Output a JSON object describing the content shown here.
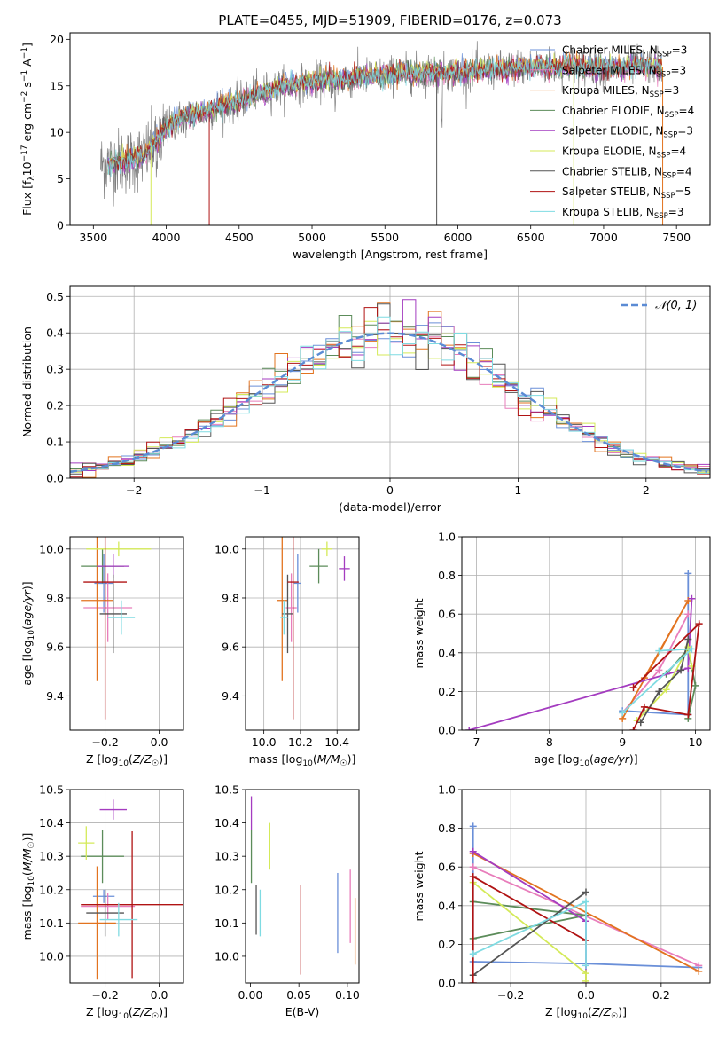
{
  "colors": {
    "Chabrier MILES": "#6a8fd8",
    "Salpeter MILES": "#e87dbb",
    "Kroupa MILES": "#e2731f",
    "Chabrier ELODIE": "#5c8c5a",
    "Salpeter ELODIE": "#a43cc0",
    "Kroupa ELODIE": "#d4ea58",
    "Chabrier STELIB": "#545454",
    "Salpeter STELIB": "#b01313",
    "Kroupa STELIB": "#7fdbe2",
    "normal": "#5b8bd4"
  },
  "chart_data": [
    {
      "id": "spectrum",
      "type": "line",
      "title": "PLATE=0455, MJD=51909, FIBERID=0176, z=0.073",
      "xlabel": "wavelength [Angstrom, rest frame]",
      "ylabel": "Flux [fλ10⁻¹⁷ erg cm⁻² s⁻¹ A⁻¹]",
      "xlim": [
        3340,
        7730
      ],
      "ylim": [
        0,
        20.7
      ],
      "xticks": [
        3500,
        4000,
        4500,
        5000,
        5500,
        6000,
        6500,
        7000,
        7500
      ],
      "yticks": [
        0,
        5,
        10,
        15,
        20
      ],
      "grid": false,
      "legend_position": "upper right",
      "legend": [
        "Chabrier MILES, NSSP=3",
        "Salpeter MILES, NSSP=3",
        "Kroupa MILES, NSSP=3",
        "Chabrier ELODIE, NSSP=4",
        "Salpeter ELODIE, NSSP=3",
        "Kroupa ELODIE, NSSP=4",
        "Chabrier STELIB, NSSP=4",
        "Salpeter STELIB, NSSP=5",
        "Kroupa STELIB, NSSP=3"
      ],
      "continuum": [
        [
          3550,
          6.5
        ],
        [
          3650,
          6.8
        ],
        [
          3750,
          7.0
        ],
        [
          3850,
          7.5
        ],
        [
          3950,
          9.5
        ],
        [
          4000,
          10.5
        ],
        [
          4100,
          11.5
        ],
        [
          4200,
          12.0
        ],
        [
          4300,
          12.3
        ],
        [
          4400,
          13.0
        ],
        [
          4500,
          13.3
        ],
        [
          4600,
          14.0
        ],
        [
          4700,
          14.5
        ],
        [
          4800,
          15.0
        ],
        [
          4900,
          15.2
        ],
        [
          5000,
          15.4
        ],
        [
          5100,
          15.6
        ],
        [
          5200,
          15.6
        ],
        [
          5300,
          15.9
        ],
        [
          5400,
          16.0
        ],
        [
          5500,
          16.1
        ],
        [
          5600,
          16.3
        ],
        [
          5700,
          16.4
        ],
        [
          5800,
          16.4
        ],
        [
          5900,
          16.4
        ],
        [
          6000,
          16.4
        ],
        [
          6100,
          16.6
        ],
        [
          6200,
          16.8
        ],
        [
          6300,
          16.8
        ],
        [
          6400,
          17.0
        ],
        [
          6500,
          17.0
        ],
        [
          6600,
          17.1
        ],
        [
          6700,
          17.1
        ],
        [
          6800,
          17.2
        ],
        [
          6900,
          17.0
        ],
        [
          7000,
          16.9
        ],
        [
          7100,
          16.9
        ],
        [
          7200,
          17.1
        ],
        [
          7300,
          17.2
        ],
        [
          7400,
          17.0
        ]
      ],
      "data_color": "#808080",
      "model_color": "#7fdbe2"
    },
    {
      "id": "residuals",
      "type": "line",
      "xlabel": "(data-model)/error",
      "ylabel": "Normed distribution",
      "xlim": [
        -2.5,
        2.5
      ],
      "ylim": [
        0,
        0.53
      ],
      "xticks": [
        -2,
        -1,
        0,
        1,
        2
      ],
      "yticks": [
        0.0,
        0.1,
        0.2,
        0.3,
        0.4,
        0.5
      ],
      "grid": true,
      "legend_position": "upper right",
      "legend_label": "𝒩(0, 1)",
      "bin_width": 0.1
    },
    {
      "id": "age-Z",
      "type": "scatter",
      "xlabel": "Z [log10(Z/Z☉)]",
      "ylabel": "age  [log10(age/yr)]",
      "xlim": [
        -0.33,
        0.09
      ],
      "ylim": [
        9.26,
        10.05
      ],
      "xticks": [
        -0.2,
        0.0
      ],
      "xticklabels": [
        "−0.2",
        "0.0"
      ],
      "yticks": [
        9.4,
        9.6,
        9.8,
        10.0
      ],
      "grid": true,
      "points": [
        {
          "model": "Chabrier MILES",
          "x": -0.205,
          "y": 9.86,
          "xerr": 0.035,
          "yerr": 0.12
        },
        {
          "model": "Salpeter MILES",
          "x": -0.19,
          "y": 9.76,
          "xerr": 0.09,
          "yerr": 0.14
        },
        {
          "model": "Kroupa MILES",
          "x": -0.23,
          "y": 9.79,
          "xerr": 0.06,
          "yerr": 0.33
        },
        {
          "model": "Chabrier ELODIE",
          "x": -0.21,
          "y": 9.93,
          "xerr": 0.08,
          "yerr": 0.07
        },
        {
          "model": "Salpeter ELODIE",
          "x": -0.17,
          "y": 9.93,
          "xerr": 0.06,
          "yerr": 0.05
        },
        {
          "model": "Kroupa ELODIE",
          "x": -0.15,
          "y": 10.0,
          "xerr": 0.12,
          "yerr": 0.03
        },
        {
          "model": "Chabrier STELIB",
          "x": -0.17,
          "y": 9.735,
          "xerr": 0.05,
          "yerr": 0.16
        },
        {
          "model": "Salpeter STELIB",
          "x": -0.2,
          "y": 9.865,
          "xerr": 0.08,
          "yerr": 0.56
        },
        {
          "model": "Kroupa STELIB",
          "x": -0.14,
          "y": 9.72,
          "xerr": 0.05,
          "yerr": 0.07
        }
      ]
    },
    {
      "id": "age-mass",
      "type": "scatter",
      "xlabel": "mass [log10(M/M☉)]",
      "xlim": [
        9.9,
        10.52
      ],
      "ylim": [
        9.26,
        10.05
      ],
      "xticks": [
        10.0,
        10.2,
        10.4
      ],
      "yticks": [
        9.4,
        9.6,
        9.8,
        10.0
      ],
      "grid": true,
      "points": [
        {
          "model": "Chabrier MILES",
          "x": 10.185,
          "y": 9.86,
          "xerr": 0.02,
          "yerr": 0.12
        },
        {
          "model": "Salpeter MILES",
          "x": 10.15,
          "y": 9.76,
          "xerr": 0.03,
          "yerr": 0.14
        },
        {
          "model": "Kroupa MILES",
          "x": 10.1,
          "y": 9.79,
          "xerr": 0.03,
          "yerr": 0.33
        },
        {
          "model": "Chabrier ELODIE",
          "x": 10.3,
          "y": 9.93,
          "xerr": 0.05,
          "yerr": 0.07
        },
        {
          "model": "Salpeter ELODIE",
          "x": 10.44,
          "y": 9.92,
          "xerr": 0.03,
          "yerr": 0.05
        },
        {
          "model": "Kroupa ELODIE",
          "x": 10.345,
          "y": 10.0,
          "xerr": 0.03,
          "yerr": 0.03
        },
        {
          "model": "Chabrier STELIB",
          "x": 10.13,
          "y": 9.735,
          "xerr": 0.03,
          "yerr": 0.16
        },
        {
          "model": "Salpeter STELIB",
          "x": 10.16,
          "y": 9.865,
          "xerr": 0.03,
          "yerr": 0.56
        },
        {
          "model": "Kroupa STELIB",
          "x": 10.11,
          "y": 9.72,
          "xerr": 0.02,
          "yerr": 0.07
        }
      ]
    },
    {
      "id": "weight-age",
      "type": "line",
      "xlabel": "age  [log10(age/yr)]",
      "ylabel": "mass weight",
      "xlim": [
        6.8,
        10.2
      ],
      "ylim": [
        0,
        1.0
      ],
      "xticks": [
        7,
        8,
        9,
        10
      ],
      "yticks": [
        0.0,
        0.2,
        0.4,
        0.6,
        0.8,
        1.0
      ],
      "grid": true,
      "series": [
        {
          "model": "Chabrier MILES",
          "x": [
            9.0,
            9.9,
            9.9
          ],
          "y": [
            0.1,
            0.08,
            0.81
          ]
        },
        {
          "model": "Salpeter MILES",
          "x": [
            9.0,
            9.5,
            9.9
          ],
          "y": [
            0.09,
            0.31,
            0.6
          ]
        },
        {
          "model": "Kroupa MILES",
          "x": [
            9.0,
            9.9,
            9.3
          ],
          "y": [
            0.06,
            0.67,
            0.27
          ]
        },
        {
          "model": "Chabrier ELODIE",
          "x": [
            9.6,
            9.9,
            10.0,
            9.9
          ],
          "y": [
            0.29,
            0.42,
            0.23,
            0.06
          ]
        },
        {
          "model": "Salpeter ELODIE",
          "x": [
            6.9,
            9.9,
            9.95
          ],
          "y": [
            0.0,
            0.32,
            0.68
          ]
        },
        {
          "model": "Kroupa ELODIE",
          "x": [
            9.2,
            9.6,
            9.9,
            9.95
          ],
          "y": [
            0.05,
            0.21,
            0.43,
            0.33
          ]
        },
        {
          "model": "Chabrier STELIB",
          "x": [
            9.25,
            9.5,
            9.8,
            9.9
          ],
          "y": [
            0.04,
            0.2,
            0.31,
            0.47
          ]
        },
        {
          "model": "Salpeter STELIB",
          "x": [
            9.15,
            9.3,
            9.9,
            10.05,
            9.15
          ],
          "y": [
            0.0,
            0.12,
            0.08,
            0.55,
            0.22
          ]
        },
        {
          "model": "Kroupa STELIB",
          "x": [
            9.5,
            9.95,
            9.0
          ],
          "y": [
            0.41,
            0.42,
            0.09
          ]
        }
      ]
    },
    {
      "id": "mass-Z",
      "type": "scatter",
      "xlabel": "Z [log10(Z/Z☉)]",
      "ylabel": "mass [log10(M/M☉)]",
      "xlim": [
        -0.33,
        0.09
      ],
      "ylim": [
        9.92,
        10.5
      ],
      "xticks": [
        -0.2,
        0.0
      ],
      "xticklabels": [
        "−0.2",
        "0.0"
      ],
      "yticks": [
        10.0,
        10.1,
        10.2,
        10.3,
        10.4,
        10.5
      ],
      "grid": true,
      "points": [
        {
          "model": "Chabrier MILES",
          "x": -0.205,
          "y": 10.18,
          "xerr": 0.04,
          "yerr": 0.02
        },
        {
          "model": "Salpeter MILES",
          "x": -0.19,
          "y": 10.15,
          "xerr": 0.1,
          "yerr": 0.04
        },
        {
          "model": "Kroupa MILES",
          "x": -0.23,
          "y": 10.1,
          "xerr": 0.07,
          "yerr": 0.17
        },
        {
          "model": "Chabrier ELODIE",
          "x": -0.21,
          "y": 10.3,
          "xerr": 0.08,
          "yerr": 0.08
        },
        {
          "model": "Salpeter ELODIE",
          "x": -0.17,
          "y": 10.44,
          "xerr": 0.05,
          "yerr": 0.03
        },
        {
          "model": "Kroupa ELODIE",
          "x": -0.27,
          "y": 10.34,
          "xerr": 0.03,
          "yerr": 0.05
        },
        {
          "model": "Chabrier STELIB",
          "x": -0.2,
          "y": 10.13,
          "xerr": 0.07,
          "yerr": 0.07
        },
        {
          "model": "Salpeter STELIB",
          "x": -0.1,
          "y": 10.155,
          "xerr": 0.19,
          "yerr": 0.22
        },
        {
          "model": "Kroupa STELIB",
          "x": -0.15,
          "y": 10.11,
          "xerr": 0.07,
          "yerr": 0.05
        }
      ]
    },
    {
      "id": "mass-EBV",
      "type": "scatter",
      "xlabel": "E(B-V)",
      "xlim": [
        -0.005,
        0.112
      ],
      "ylim": [
        9.92,
        10.5
      ],
      "xticks": [
        0.0,
        0.05,
        0.1
      ],
      "xticklabels": [
        "0.00",
        "0.05",
        "0.10"
      ],
      "yticks": [
        10.0,
        10.1,
        10.2,
        10.3,
        10.4,
        10.5
      ],
      "grid": false,
      "points": [
        {
          "model": "Chabrier MILES",
          "x": 0.09,
          "y": 10.13,
          "xerr": 0,
          "yerr": 0.12
        },
        {
          "model": "Salpeter MILES",
          "x": 0.103,
          "y": 10.15,
          "xerr": 0,
          "yerr": 0.11
        },
        {
          "model": "Kroupa MILES",
          "x": 0.108,
          "y": 10.075,
          "xerr": 0,
          "yerr": 0.1
        },
        {
          "model": "Chabrier ELODIE",
          "x": 0.001,
          "y": 10.3,
          "xerr": 0,
          "yerr": 0.08
        },
        {
          "model": "Salpeter ELODIE",
          "x": 0.001,
          "y": 10.43,
          "xerr": 0,
          "yerr": 0.05
        },
        {
          "model": "Kroupa ELODIE",
          "x": 0.02,
          "y": 10.33,
          "xerr": 0,
          "yerr": 0.07
        },
        {
          "model": "Chabrier STELIB",
          "x": 0.006,
          "y": 10.14,
          "xerr": 0,
          "yerr": 0.075
        },
        {
          "model": "Salpeter STELIB",
          "x": 0.052,
          "y": 10.08,
          "xerr": 0,
          "yerr": 0.135
        },
        {
          "model": "Kroupa STELIB",
          "x": 0.01,
          "y": 10.13,
          "xerr": 0,
          "yerr": 0.07
        }
      ]
    },
    {
      "id": "weight-Z",
      "type": "line",
      "xlabel": "Z [log10(Z/Z☉)]",
      "ylabel": "mass weight",
      "xlim": [
        -0.33,
        0.33
      ],
      "ylim": [
        0,
        1.0
      ],
      "xticks": [
        -0.2,
        0.0,
        0.2
      ],
      "xticklabels": [
        "−0.2",
        "0.0",
        "0.2"
      ],
      "yticks": [
        0.0,
        0.2,
        0.4,
        0.6,
        0.8,
        1.0
      ],
      "grid": true,
      "series": [
        {
          "model": "Chabrier MILES",
          "x": [
            -0.3,
            -0.3,
            0.0,
            0.3
          ],
          "y": [
            0.81,
            0.11,
            0.1,
            0.08
          ]
        },
        {
          "model": "Salpeter MILES",
          "x": [
            -0.3,
            0.3
          ],
          "y": [
            0.6,
            0.09
          ]
        },
        {
          "model": "Kroupa MILES",
          "x": [
            -0.3,
            0.3
          ],
          "y": [
            0.67,
            0.06
          ]
        },
        {
          "model": "Chabrier ELODIE",
          "x": [
            -0.3,
            0.0,
            -0.3
          ],
          "y": [
            0.23,
            0.35,
            0.42
          ]
        },
        {
          "model": "Salpeter ELODIE",
          "x": [
            -0.3,
            0.0,
            0.0
          ],
          "y": [
            0.68,
            0.32,
            0.0
          ]
        },
        {
          "model": "Kroupa ELODIE",
          "x": [
            -0.3,
            0.0,
            0.0
          ],
          "y": [
            0.52,
            0.05,
            0.01
          ]
        },
        {
          "model": "Chabrier STELIB",
          "x": [
            -0.3,
            0.0
          ],
          "y": [
            0.04,
            0.47
          ]
        },
        {
          "model": "Salpeter STELIB",
          "x": [
            -0.3,
            -0.3,
            0.0
          ],
          "y": [
            0.0,
            0.55,
            0.22
          ]
        },
        {
          "model": "Kroupa STELIB",
          "x": [
            -0.3,
            0.0,
            0.0
          ],
          "y": [
            0.15,
            0.42,
            0.09
          ]
        }
      ]
    }
  ]
}
